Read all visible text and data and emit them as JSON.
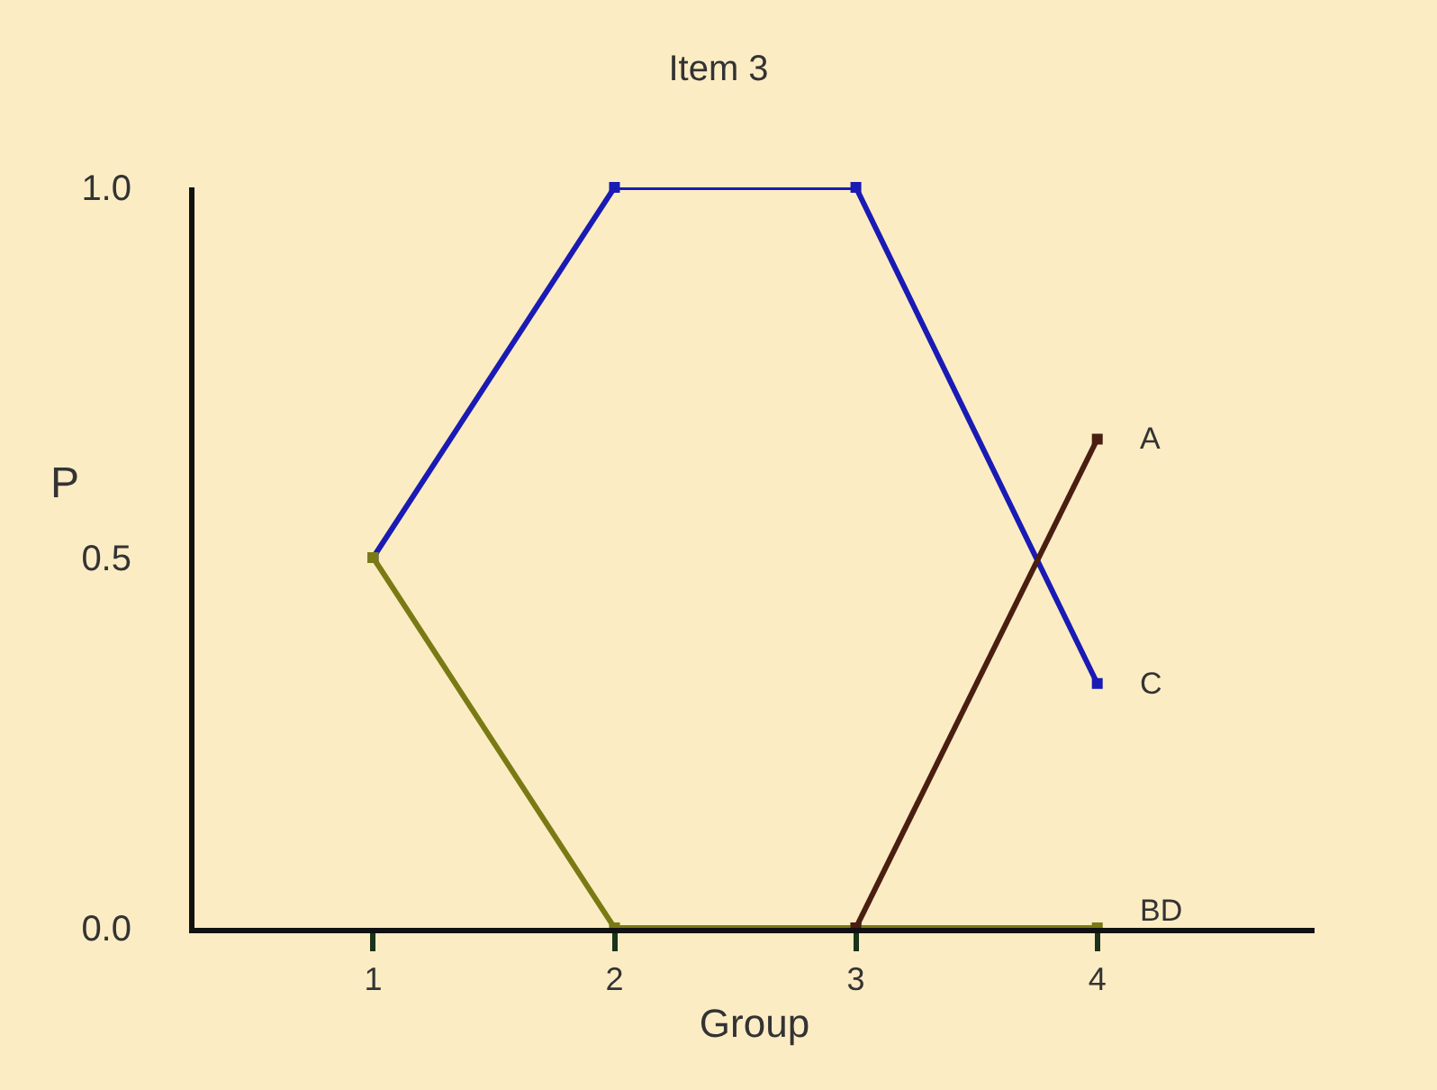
{
  "chart_data": {
    "type": "line",
    "title": "Item 3",
    "xlabel": "Group",
    "ylabel": "P",
    "x": [
      1,
      2,
      3,
      4
    ],
    "series": [
      {
        "name": "C",
        "color": "#1a1ab4",
        "values": [
          0.5,
          1.0,
          1.0,
          0.33
        ]
      },
      {
        "name": "BD",
        "color": "#7a7a14",
        "values": [
          0.5,
          0.0,
          0.0,
          0.0
        ]
      },
      {
        "name": "A",
        "color": "#4a1e10",
        "values": [
          null,
          null,
          0.0,
          0.66
        ]
      }
    ],
    "xlim": [
      0.26,
      4.9
    ],
    "xticks": [
      1,
      2,
      3,
      4
    ],
    "ylim": [
      0.0,
      1.0
    ],
    "yticks": [
      {
        "value": 0.0,
        "label": "0.0"
      },
      {
        "value": 0.5,
        "label": "0.5"
      },
      {
        "value": 1.0,
        "label": "1.0"
      }
    ],
    "grid": false,
    "legend": false,
    "marker": "square",
    "line_style": "solid"
  }
}
